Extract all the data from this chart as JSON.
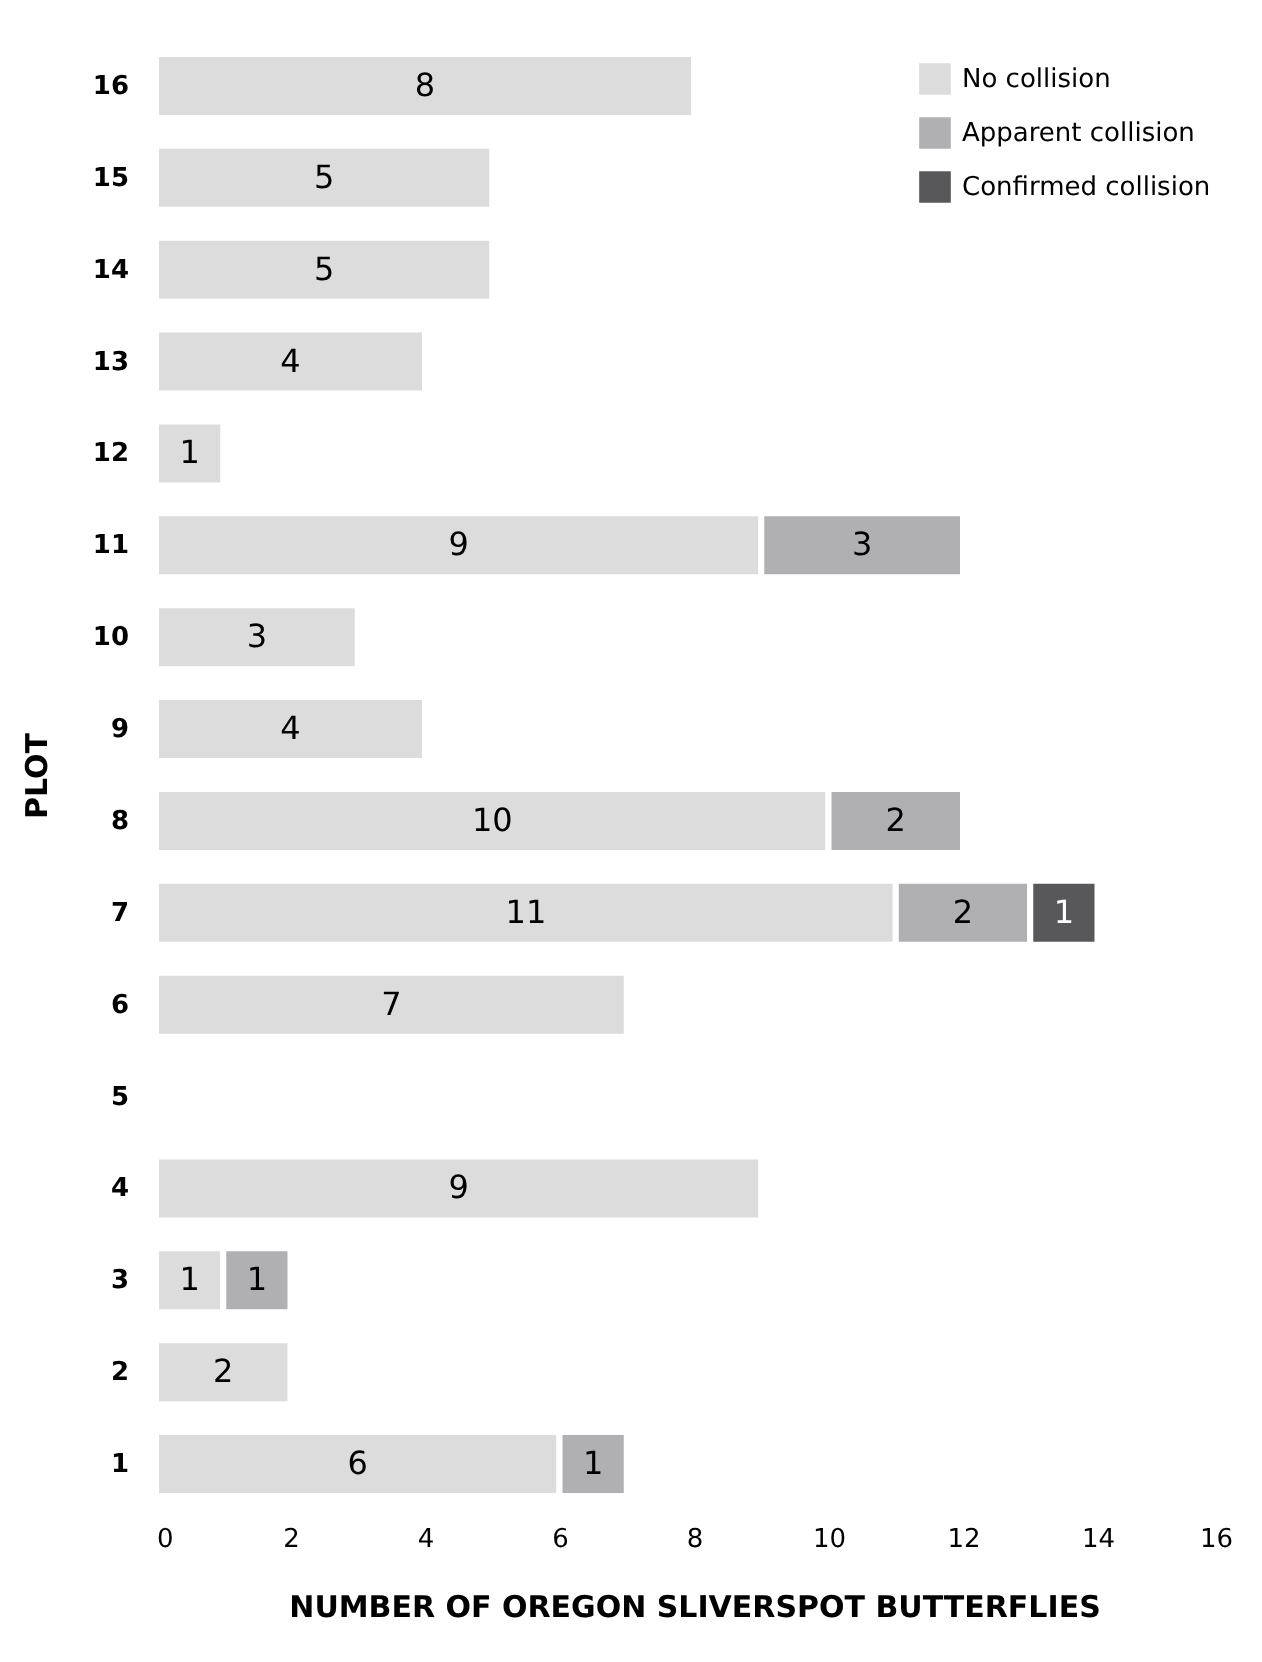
{
  "chart_data": {
    "type": "bar",
    "orientation": "horizontal",
    "stacked": true,
    "data_labels": true,
    "xlabel": "NUMBER OF OREGON SLIVERSPOT BUTTERFLIES",
    "ylabel": "PLOT",
    "categories": [
      "16",
      "15",
      "14",
      "13",
      "12",
      "11",
      "10",
      "9",
      "8",
      "7",
      "6",
      "5",
      "4",
      "3",
      "2",
      "1"
    ],
    "series": [
      {
        "name": "No collision",
        "color": "#dcdcdd",
        "values": [
          8,
          5,
          5,
          4,
          1,
          9,
          3,
          4,
          10,
          11,
          7,
          null,
          9,
          1,
          2,
          6
        ]
      },
      {
        "name": "Apparent collision",
        "color": "#b0b0b3",
        "values": [
          null,
          null,
          null,
          null,
          null,
          3,
          null,
          null,
          2,
          2,
          null,
          null,
          null,
          1,
          null,
          1
        ]
      },
      {
        "name": "Confirmed collision",
        "color": "#58585a",
        "values": [
          null,
          null,
          null,
          null,
          null,
          null,
          null,
          null,
          null,
          1,
          null,
          null,
          null,
          null,
          null,
          null
        ]
      }
    ],
    "xlim": [
      0,
      16
    ],
    "xticks": [
      0,
      2,
      4,
      6,
      8,
      10,
      12,
      14,
      16
    ],
    "grid": false,
    "legend": "top right"
  }
}
